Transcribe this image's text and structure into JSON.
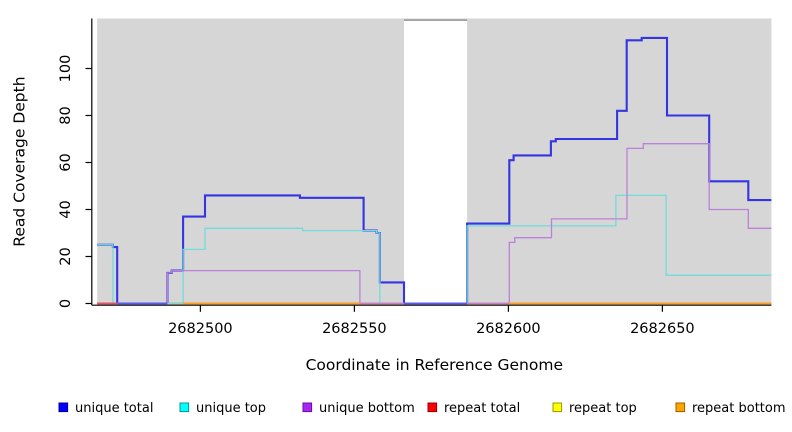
{
  "figure": {
    "xlabel": "Coordinate in Reference Genome",
    "ylabel": "Read Coverage Depth"
  },
  "chart_data": {
    "type": "line",
    "subtype": "step",
    "title": "",
    "xlabel": "Coordinate in Reference Genome",
    "ylabel": "Read Coverage Depth",
    "xlim": [
      2682466.5,
      2682685.4
    ],
    "ylim": [
      0,
      121
    ],
    "xticks": [
      2682500,
      2682550,
      2682600,
      2682650
    ],
    "yticks": [
      0,
      20,
      40,
      60,
      80,
      100
    ],
    "grid": false,
    "legend_position": "bottom",
    "panel_background": "#d6d6d6",
    "gap_region": {
      "from": 2682566.1,
      "to": 2682586.6,
      "fill": "#ffffff",
      "top_line_color": "#9a9a9a"
    },
    "series": [
      {
        "name": "unique total",
        "color": "#3434e2",
        "width": 2.1,
        "steps": [
          [
            2682466.5,
            25
          ],
          [
            2682471.6,
            24
          ],
          [
            2682473.0,
            0
          ],
          [
            2682489.3,
            13
          ],
          [
            2682490.7,
            14
          ],
          [
            2682494.4,
            37
          ],
          [
            2682501.5,
            46
          ],
          [
            2682532.3,
            45
          ],
          [
            2682553.0,
            31
          ],
          [
            2682557.2,
            30
          ],
          [
            2682558.3,
            9
          ],
          [
            2682566.1,
            0
          ],
          [
            2682586.6,
            34
          ],
          [
            2682600.3,
            61
          ],
          [
            2682601.7,
            63
          ],
          [
            2682613.8,
            69
          ],
          [
            2682615.4,
            70
          ],
          [
            2682635.3,
            82
          ],
          [
            2682638.4,
            112
          ],
          [
            2682643.3,
            113
          ],
          [
            2682651.5,
            80
          ],
          [
            2682665.2,
            52
          ],
          [
            2682677.9,
            44
          ]
        ]
      },
      {
        "name": "unique top",
        "color": "#72dcdc",
        "width": 1.3,
        "steps": [
          [
            2682466.5,
            25
          ],
          [
            2682471.6,
            0
          ],
          [
            2682494.4,
            23
          ],
          [
            2682501.5,
            32
          ],
          [
            2682533.2,
            31
          ],
          [
            2682557.2,
            30
          ],
          [
            2682558.3,
            0
          ],
          [
            2682586.6,
            33
          ],
          [
            2682634.9,
            46
          ],
          [
            2682651.2,
            12
          ]
        ]
      },
      {
        "name": "unique bottom",
        "color": "#bd80da",
        "width": 1.3,
        "steps": [
          [
            2682466.5,
            0
          ],
          [
            2682489.3,
            13
          ],
          [
            2682490.7,
            14
          ],
          [
            2682551.8,
            0
          ],
          [
            2682600.3,
            26
          ],
          [
            2682602.1,
            28
          ],
          [
            2682614.0,
            36
          ],
          [
            2682638.5,
            66
          ],
          [
            2682643.8,
            68
          ],
          [
            2682665.2,
            40
          ],
          [
            2682677.9,
            32
          ]
        ]
      },
      {
        "name": "repeat total",
        "color": "#e05868",
        "width": 1.8,
        "steps": [
          [
            2682466.5,
            0
          ]
        ]
      },
      {
        "name": "repeat top",
        "color": "#f5e642",
        "width": 1.2,
        "steps": [
          [
            2682466.5,
            0
          ]
        ]
      },
      {
        "name": "repeat bottom",
        "color": "#ff9d1e",
        "width": 1.5,
        "steps": [
          [
            2682466.5,
            0
          ]
        ]
      }
    ],
    "zero_line_visible_segments": [
      {
        "series": "repeat total",
        "from": 2682466.5,
        "to": 2682473.0,
        "color": "#e05868",
        "width": 2.0
      },
      {
        "series": "unique total",
        "from": 2682473.0,
        "to": 2682489.3,
        "color": "#5b5bee",
        "width": 2.0
      },
      {
        "series": "unique top",
        "from": 2682489.3,
        "to": 2682494.4,
        "color": "#72dcdc",
        "width": 1.4
      },
      {
        "series": "repeat bottom",
        "from": 2682494.4,
        "to": 2682551.8,
        "color": "#ff9d1e",
        "width": 1.5
      },
      {
        "series": "unique bottom",
        "from": 2682551.8,
        "to": 2682566.1,
        "color": "#bd80da",
        "width": 1.4
      },
      {
        "series": "unique total",
        "from": 2682566.1,
        "to": 2682586.6,
        "color": "#5b5bee",
        "width": 2.0
      },
      {
        "series": "unique bottom",
        "from": 2682586.6,
        "to": 2682600.3,
        "color": "#bd80da",
        "width": 1.4
      },
      {
        "series": "repeat bottom",
        "from": 2682600.3,
        "to": 2682685.4,
        "color": "#ff9d1e",
        "width": 1.5
      }
    ]
  },
  "legend": {
    "items": [
      {
        "label": "unique total",
        "fill": "#0000ff",
        "border": "#000099"
      },
      {
        "label": "unique top",
        "fill": "#00ffff",
        "border": "#009999"
      },
      {
        "label": "unique bottom",
        "fill": "#a428f0",
        "border": "#6a0dad"
      },
      {
        "label": "repeat total",
        "fill": "#ff0000",
        "border": "#990000"
      },
      {
        "label": "repeat top",
        "fill": "#ffff00",
        "border": "#999900"
      },
      {
        "label": "repeat bottom",
        "fill": "#ffa500",
        "border": "#995f00"
      }
    ]
  }
}
